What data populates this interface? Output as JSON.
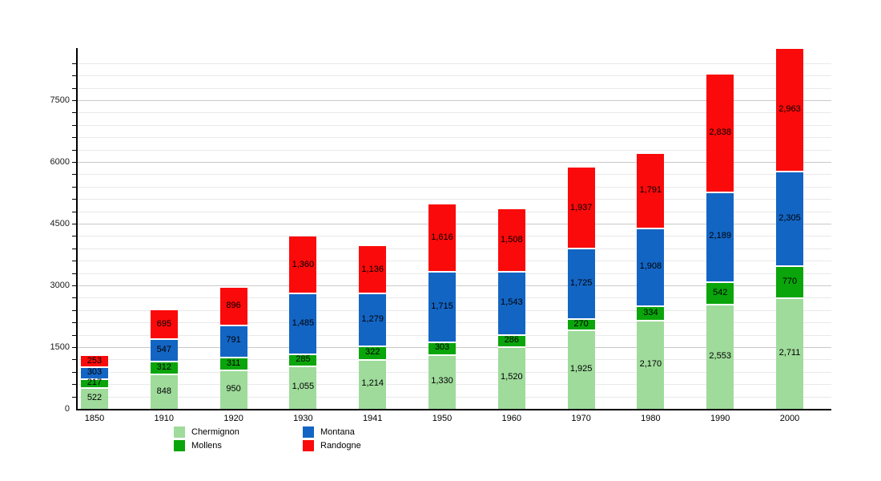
{
  "chart_data": {
    "type": "bar",
    "stacked": true,
    "title": "",
    "xlabel": "",
    "ylabel": "",
    "categories": [
      "1850",
      "1910",
      "1920",
      "1930",
      "1941",
      "1950",
      "1960",
      "1970",
      "1980",
      "1990",
      "2000"
    ],
    "series": [
      {
        "name": "Chermignon",
        "color": "#9fdb9b",
        "values": [
          522,
          848,
          950,
          1055,
          1214,
          1330,
          1520,
          1925,
          2170,
          2553,
          2711
        ]
      },
      {
        "name": "Mollens",
        "color": "#0aa50a",
        "values": [
          217,
          312,
          311,
          285,
          322,
          303,
          286,
          270,
          334,
          542,
          770
        ]
      },
      {
        "name": "Montana",
        "color": "#1365c4",
        "values": [
          303,
          547,
          791,
          1485,
          1279,
          1715,
          1543,
          1725,
          1908,
          2189,
          2305
        ]
      },
      {
        "name": "Randogne",
        "color": "#fa0a0a",
        "values": [
          253,
          695,
          896,
          1360,
          1136,
          1616,
          1508,
          1937,
          1791,
          2838,
          2963
        ]
      }
    ],
    "value_labels_on_segments": true,
    "ylim": [
      0,
      8766
    ],
    "y_major_ticks": [
      0,
      1500,
      3000,
      4500,
      6000,
      7500
    ],
    "y_minor_step": 300,
    "grid": true,
    "legend_position": "bottom",
    "legend_columns": [
      [
        "Chermignon",
        "Mollens"
      ],
      [
        "Montana",
        "Randogne"
      ]
    ],
    "colors": {
      "axis": "#000000",
      "minor_grid": "#e9e9e9",
      "major_grid": "#c9c9c9",
      "label_text": "#000000"
    }
  }
}
